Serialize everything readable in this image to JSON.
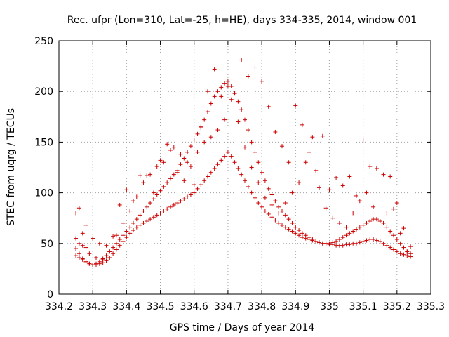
{
  "chart_data": {
    "type": "scatter",
    "title": "Rec. ufpr (Lon=310, Lat=-25, h=HE), days 334-335, 2014, window 001",
    "xlabel": "GPS time / Days of year 2014",
    "ylabel": "STEC from uqrg / TECUs",
    "xlim": [
      334.2,
      335.3
    ],
    "ylim": [
      0,
      250
    ],
    "xticks": [
      "334.2",
      "334.3",
      "334.4",
      "334.5",
      "334.6",
      "334.7",
      "334.8",
      "334.9",
      "335",
      "335.1",
      "335.2",
      "335.3"
    ],
    "yticks": [
      "0",
      "50",
      "100",
      "150",
      "200",
      "250"
    ],
    "grid": true,
    "marker": "+",
    "color": "#cc0000",
    "series": [
      {
        "x": [
          334.25,
          334.25,
          334.26,
          334.26,
          334.27,
          334.27,
          334.28,
          334.28,
          334.29,
          334.3,
          334.31,
          334.32,
          334.33,
          334.34,
          334.35,
          334.36,
          334.37,
          334.38,
          334.39,
          334.4,
          334.41,
          334.42,
          334.43,
          334.44,
          334.45,
          334.46,
          334.47,
          334.48,
          334.49,
          334.5,
          334.51,
          334.52,
          334.53,
          334.54,
          334.55,
          334.56,
          334.57,
          334.58,
          334.59,
          334.6,
          334.61,
          334.62,
          334.63,
          334.64,
          334.65,
          334.66,
          334.67,
          334.68,
          334.69,
          334.7,
          334.71,
          334.72,
          334.73,
          334.74,
          334.75,
          334.76,
          334.77,
          334.78,
          334.79,
          334.8,
          334.81,
          334.82,
          334.83,
          334.84,
          334.85,
          334.86,
          334.87,
          334.88,
          334.89,
          334.9,
          334.91,
          334.92,
          334.93,
          334.94,
          334.95,
          334.96,
          334.97,
          334.98,
          334.99,
          335.0,
          335.01,
          335.02,
          335.03,
          335.04,
          335.05,
          335.06,
          335.07,
          335.08,
          335.09,
          335.1,
          335.11,
          335.12,
          335.13,
          335.14,
          335.15,
          335.16,
          335.17,
          335.18,
          335.19,
          335.2,
          335.21,
          335.22,
          335.23,
          335.24
        ],
        "y": [
          45,
          55,
          40,
          50,
          35,
          48,
          32,
          46,
          30,
          29,
          29,
          30,
          31,
          33,
          36,
          40,
          44,
          48,
          52,
          56,
          60,
          63,
          66,
          68,
          70,
          72,
          74,
          76,
          78,
          80,
          82,
          84,
          86,
          88,
          90,
          92,
          94,
          96,
          98,
          100,
          104,
          108,
          112,
          116,
          120,
          124,
          128,
          132,
          136,
          140,
          136,
          130,
          124,
          118,
          112,
          106,
          100,
          95,
          90,
          86,
          82,
          79,
          76,
          73,
          70,
          68,
          66,
          64,
          62,
          60,
          58,
          56,
          55,
          54,
          53,
          52,
          51,
          50,
          50,
          49,
          49,
          48,
          48,
          48,
          49,
          49,
          50,
          50,
          51,
          52,
          53,
          54,
          54,
          53,
          52,
          50,
          48,
          46,
          44,
          42,
          40,
          39,
          38,
          37
        ]
      },
      {
        "x": [
          334.25,
          334.26,
          334.27,
          334.28,
          334.29,
          334.3,
          334.31,
          334.32,
          334.33,
          334.34,
          334.35,
          334.36,
          334.37,
          334.38,
          334.39,
          334.4,
          334.41,
          334.42,
          334.43,
          334.44,
          334.45,
          334.46,
          334.47,
          334.48,
          334.49,
          334.5,
          334.51,
          334.52,
          334.53,
          334.54,
          334.55,
          334.56,
          334.57,
          334.58,
          334.59,
          334.6,
          334.61,
          334.62,
          334.63,
          334.64,
          334.65,
          334.66,
          334.67,
          334.68,
          334.69,
          334.7,
          334.71,
          334.72,
          334.73,
          334.74,
          334.75,
          334.76,
          334.77,
          334.78,
          334.79,
          334.8,
          334.81,
          334.82,
          334.83,
          334.84,
          334.85,
          334.86,
          334.87,
          334.88,
          334.89,
          334.9,
          334.91,
          334.92,
          334.93,
          334.94,
          334.95,
          334.96,
          334.97,
          334.98,
          334.99,
          335.0,
          335.01,
          335.02,
          335.03,
          335.04,
          335.05,
          335.06,
          335.07,
          335.08,
          335.09,
          335.1,
          335.11,
          335.12,
          335.13,
          335.14,
          335.15,
          335.16,
          335.17,
          335.18,
          335.19,
          335.2,
          335.21,
          335.22,
          335.23,
          335.24
        ],
        "y": [
          38,
          36,
          34,
          32,
          30,
          29,
          30,
          32,
          35,
          38,
          42,
          46,
          50,
          54,
          58,
          62,
          66,
          70,
          74,
          78,
          82,
          86,
          90,
          94,
          98,
          102,
          106,
          110,
          114,
          118,
          122,
          128,
          134,
          140,
          146,
          152,
          158,
          165,
          172,
          180,
          188,
          195,
          200,
          204,
          208,
          210,
          205,
          198,
          190,
          182,
          172,
          162,
          150,
          140,
          130,
          120,
          112,
          104,
          98,
          92,
          86,
          82,
          78,
          74,
          70,
          66,
          63,
          60,
          58,
          56,
          54,
          52,
          51,
          50,
          50,
          50,
          51,
          52,
          54,
          56,
          58,
          60,
          62,
          64,
          66,
          68,
          70,
          72,
          74,
          74,
          72,
          70,
          66,
          62,
          58,
          54,
          50,
          46,
          42,
          40
        ]
      },
      {
        "x": [
          334.26,
          334.28,
          334.3,
          334.32,
          334.34,
          334.36,
          334.38,
          334.4,
          334.42,
          334.44,
          334.46,
          334.48,
          334.5,
          334.52,
          334.54,
          334.56,
          334.58,
          334.6,
          334.62,
          334.64,
          334.66,
          334.68,
          334.7,
          334.72,
          334.74,
          334.76,
          334.78,
          334.8,
          334.82,
          334.84,
          334.86,
          334.88,
          334.9,
          334.92,
          334.94,
          334.96,
          334.98,
          335.0,
          335.02,
          335.04,
          335.06,
          335.08,
          335.1,
          335.12,
          335.14,
          335.16,
          335.18,
          335.2,
          335.22,
          335.24
        ],
        "y": [
          85,
          68,
          55,
          50,
          48,
          57,
          88,
          103,
          92,
          117,
          117,
          100,
          132,
          148,
          145,
          138,
          130,
          108,
          164,
          200,
          222,
          195,
          205,
          198,
          231,
          215,
          224,
          210,
          185,
          160,
          146,
          130,
          186,
          167,
          140,
          122,
          156,
          103,
          115,
          107,
          116,
          97,
          152,
          126,
          124,
          118,
          116,
          90,
          65,
          47
        ]
      },
      {
        "x": [
          334.25,
          334.27,
          334.29,
          334.31,
          334.33,
          334.35,
          334.37,
          334.39,
          334.41,
          334.43,
          334.45,
          334.47,
          334.49,
          334.51,
          334.53,
          334.55,
          334.57,
          334.59,
          334.61,
          334.63,
          334.65,
          334.67,
          334.69,
          334.71,
          334.73,
          334.75,
          334.77,
          334.79,
          334.81,
          334.83,
          334.85,
          334.87,
          334.89,
          334.91,
          334.93,
          334.95,
          334.97,
          334.99,
          335.01,
          335.03,
          335.05,
          335.07,
          335.09,
          335.11,
          335.13,
          335.15,
          335.17,
          335.19,
          335.21,
          335.23
        ],
        "y": [
          80,
          60,
          40,
          36,
          34,
          42,
          58,
          70,
          82,
          96,
          110,
          118,
          126,
          130,
          142,
          120,
          112,
          126,
          140,
          150,
          155,
          162,
          172,
          192,
          170,
          145,
          125,
          110,
          95,
          88,
          80,
          90,
          100,
          110,
          130,
          155,
          105,
          85,
          75,
          70,
          66,
          80,
          92,
          100,
          86,
          72,
          80,
          84,
          60,
          42
        ]
      }
    ]
  }
}
